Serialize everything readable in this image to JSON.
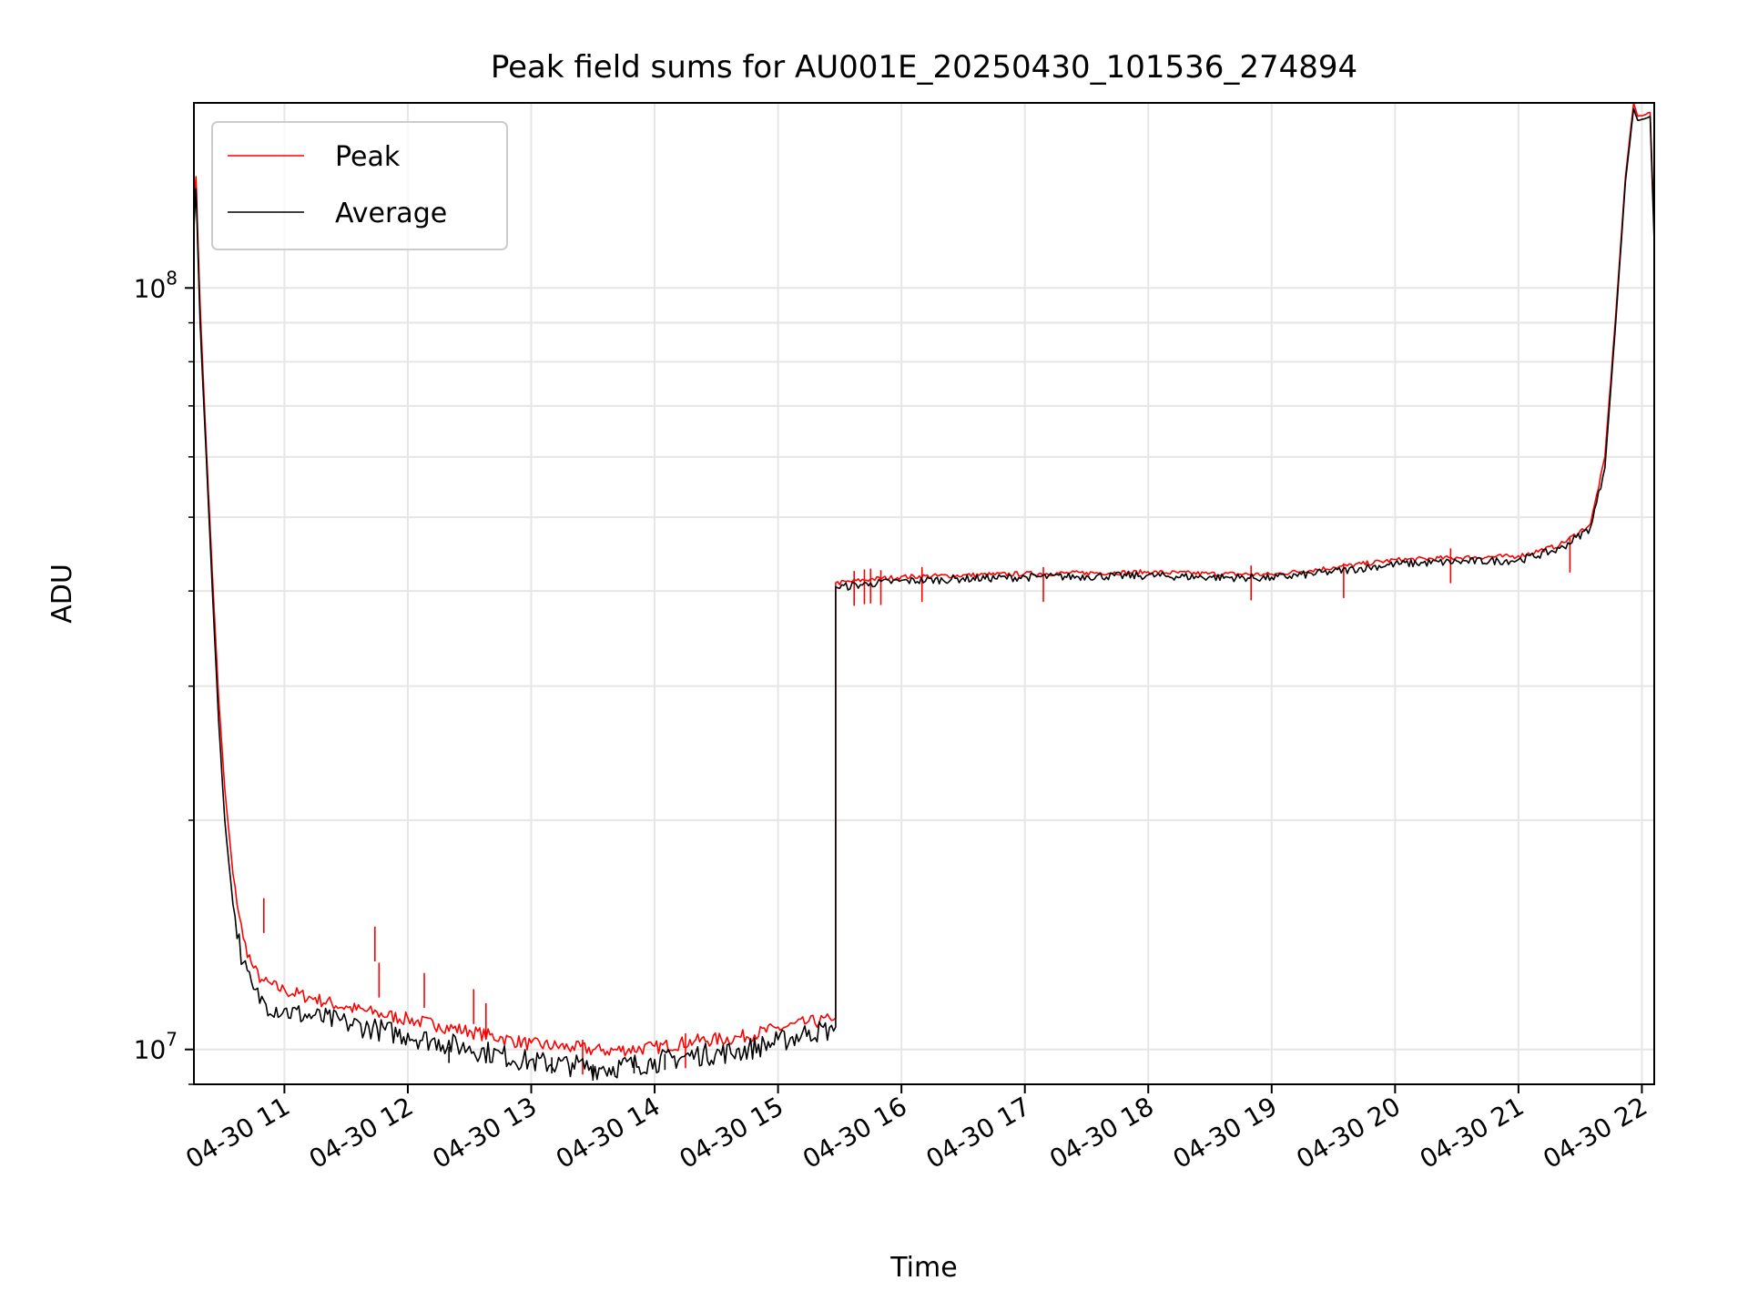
{
  "chart_data": {
    "type": "line",
    "title": "Peak field sums for AU001E_20250430_101536_274894",
    "xlabel": "Time",
    "ylabel": "ADU",
    "x_range": [
      "2025-04-30 10:16",
      "2025-04-30 22:06"
    ],
    "ylim": [
      9000000,
      175000000
    ],
    "y_scale": "log",
    "grid": true,
    "grid_minor_y": true,
    "legend_position": "top-left",
    "x_ticks": [
      {
        "value": "2025-04-30 11:00",
        "label": "04-30 11"
      },
      {
        "value": "2025-04-30 12:00",
        "label": "04-30 12"
      },
      {
        "value": "2025-04-30 13:00",
        "label": "04-30 13"
      },
      {
        "value": "2025-04-30 14:00",
        "label": "04-30 14"
      },
      {
        "value": "2025-04-30 15:00",
        "label": "04-30 15"
      },
      {
        "value": "2025-04-30 16:00",
        "label": "04-30 16"
      },
      {
        "value": "2025-04-30 17:00",
        "label": "04-30 17"
      },
      {
        "value": "2025-04-30 18:00",
        "label": "04-30 18"
      },
      {
        "value": "2025-04-30 19:00",
        "label": "04-30 19"
      },
      {
        "value": "2025-04-30 20:00",
        "label": "04-30 20"
      },
      {
        "value": "2025-04-30 21:00",
        "label": "04-30 21"
      },
      {
        "value": "2025-04-30 22:00",
        "label": "04-30 22"
      }
    ],
    "y_ticks": [
      {
        "value": 10000000,
        "base": "10",
        "exp": "7"
      },
      {
        "value": 100000000,
        "base": "10",
        "exp": "8"
      }
    ],
    "series": [
      {
        "name": "Peak",
        "color": "#ff0000",
        "points": [
          [
            "2025-04-30 10:16",
            130000000
          ],
          [
            "2025-04-30 10:17",
            140000000
          ],
          [
            "2025-04-30 10:19",
            95000000
          ],
          [
            "2025-04-30 10:22",
            62000000
          ],
          [
            "2025-04-30 10:25",
            42000000
          ],
          [
            "2025-04-30 10:28",
            29000000
          ],
          [
            "2025-04-30 10:31",
            22000000
          ],
          [
            "2025-04-30 10:35",
            17000000
          ],
          [
            "2025-04-30 10:40",
            14000000
          ],
          [
            "2025-04-30 10:45",
            12800000
          ],
          [
            "2025-04-30 10:50",
            12300000
          ],
          [
            "2025-04-30 11:00",
            12000000
          ],
          [
            "2025-04-30 11:15",
            11700000
          ],
          [
            "2025-04-30 11:30",
            11400000
          ],
          [
            "2025-04-30 11:45",
            11200000
          ],
          [
            "2025-04-30 12:00",
            11000000
          ],
          [
            "2025-04-30 12:15",
            10800000
          ],
          [
            "2025-04-30 12:30",
            10600000
          ],
          [
            "2025-04-30 12:45",
            10400000
          ],
          [
            "2025-04-30 13:00",
            10200000
          ],
          [
            "2025-04-30 13:20",
            10100000
          ],
          [
            "2025-04-30 13:35",
            10000000
          ],
          [
            "2025-04-30 14:00",
            10100000
          ],
          [
            "2025-04-30 14:20",
            10300000
          ],
          [
            "2025-04-30 14:40",
            10400000
          ],
          [
            "2025-04-30 15:00",
            10700000
          ],
          [
            "2025-04-30 15:15",
            10900000
          ],
          [
            "2025-04-30 15:28",
            11000000
          ],
          [
            "2025-04-30 15:28",
            41000000
          ],
          [
            "2025-04-30 15:45",
            41500000
          ],
          [
            "2025-04-30 16:00",
            41800000
          ],
          [
            "2025-04-30 16:30",
            42000000
          ],
          [
            "2025-04-30 17:00",
            42200000
          ],
          [
            "2025-04-30 17:30",
            42300000
          ],
          [
            "2025-04-30 18:00",
            42400000
          ],
          [
            "2025-04-30 18:30",
            42200000
          ],
          [
            "2025-04-30 19:00",
            42100000
          ],
          [
            "2025-04-30 19:30",
            43000000
          ],
          [
            "2025-04-30 20:00",
            44000000
          ],
          [
            "2025-04-30 20:30",
            44300000
          ],
          [
            "2025-04-30 21:00",
            44500000
          ],
          [
            "2025-04-30 21:20",
            46000000
          ],
          [
            "2025-04-30 21:35",
            49000000
          ],
          [
            "2025-04-30 21:42",
            60000000
          ],
          [
            "2025-04-30 21:47",
            90000000
          ],
          [
            "2025-04-30 21:52",
            140000000
          ],
          [
            "2025-04-30 21:56",
            175000000
          ],
          [
            "2025-04-30 21:58",
            168000000
          ],
          [
            "2025-04-30 22:04",
            170000000
          ],
          [
            "2025-04-30 22:06",
            120000000
          ]
        ],
        "spikes": [
          [
            "2025-04-30 10:50",
            15800000
          ],
          [
            "2025-04-30 11:44",
            14500000
          ],
          [
            "2025-04-30 11:46",
            13000000
          ],
          [
            "2025-04-30 12:08",
            12600000
          ],
          [
            "2025-04-30 12:32",
            12000000
          ],
          [
            "2025-04-30 12:38",
            11500000
          ],
          [
            "2025-04-30 13:25",
            10300000
          ],
          [
            "2025-04-30 14:15",
            10500000
          ],
          [
            "2025-04-30 15:37",
            42500000
          ],
          [
            "2025-04-30 15:42",
            42700000
          ],
          [
            "2025-04-30 15:45",
            42800000
          ],
          [
            "2025-04-30 15:50",
            42600000
          ],
          [
            "2025-04-30 16:10",
            43000000
          ],
          [
            "2025-04-30 17:09",
            43000000
          ],
          [
            "2025-04-30 18:50",
            43200000
          ],
          [
            "2025-04-30 19:35",
            43500000
          ],
          [
            "2025-04-30 20:27",
            45500000
          ],
          [
            "2025-04-30 21:25",
            47000000
          ]
        ]
      },
      {
        "name": "Average",
        "color": "#000000",
        "points": [
          [
            "2025-04-30 10:16",
            120000000
          ],
          [
            "2025-04-30 10:17",
            135000000
          ],
          [
            "2025-04-30 10:19",
            90000000
          ],
          [
            "2025-04-30 10:22",
            60000000
          ],
          [
            "2025-04-30 10:25",
            40000000
          ],
          [
            "2025-04-30 10:28",
            27000000
          ],
          [
            "2025-04-30 10:31",
            20000000
          ],
          [
            "2025-04-30 10:35",
            15500000
          ],
          [
            "2025-04-30 10:40",
            13000000
          ],
          [
            "2025-04-30 10:45",
            12000000
          ],
          [
            "2025-04-30 10:50",
            11600000
          ],
          [
            "2025-04-30 11:00",
            11300000
          ],
          [
            "2025-04-30 11:15",
            11100000
          ],
          [
            "2025-04-30 11:30",
            10900000
          ],
          [
            "2025-04-30 11:45",
            10700000
          ],
          [
            "2025-04-30 12:00",
            10500000
          ],
          [
            "2025-04-30 12:15",
            10300000
          ],
          [
            "2025-04-30 12:30",
            10100000
          ],
          [
            "2025-04-30 12:45",
            9900000
          ],
          [
            "2025-04-30 13:00",
            9700000
          ],
          [
            "2025-04-30 13:20",
            9600000
          ],
          [
            "2025-04-30 13:35",
            9500000
          ],
          [
            "2025-04-30 14:00",
            9700000
          ],
          [
            "2025-04-30 14:20",
            9900000
          ],
          [
            "2025-04-30 14:40",
            10000000
          ],
          [
            "2025-04-30 15:00",
            10300000
          ],
          [
            "2025-04-30 15:15",
            10600000
          ],
          [
            "2025-04-30 15:28",
            10700000
          ],
          [
            "2025-04-30 15:28",
            40500000
          ],
          [
            "2025-04-30 15:45",
            41000000
          ],
          [
            "2025-04-30 16:00",
            41300000
          ],
          [
            "2025-04-30 16:30",
            41600000
          ],
          [
            "2025-04-30 17:00",
            41800000
          ],
          [
            "2025-04-30 17:30",
            41900000
          ],
          [
            "2025-04-30 18:00",
            42000000
          ],
          [
            "2025-04-30 18:30",
            41800000
          ],
          [
            "2025-04-30 19:00",
            41700000
          ],
          [
            "2025-04-30 19:30",
            42500000
          ],
          [
            "2025-04-30 20:00",
            43500000
          ],
          [
            "2025-04-30 20:30",
            43800000
          ],
          [
            "2025-04-30 21:00",
            44000000
          ],
          [
            "2025-04-30 21:20",
            45500000
          ],
          [
            "2025-04-30 21:35",
            48500000
          ],
          [
            "2025-04-30 21:42",
            58000000
          ],
          [
            "2025-04-30 21:47",
            88000000
          ],
          [
            "2025-04-30 21:52",
            138000000
          ],
          [
            "2025-04-30 21:56",
            172000000
          ],
          [
            "2025-04-30 21:58",
            166000000
          ],
          [
            "2025-04-30 22:04",
            168000000
          ],
          [
            "2025-04-30 22:06",
            115000000
          ]
        ],
        "dips": [
          [
            "2025-04-30 13:10",
            9300000
          ],
          [
            "2025-04-30 13:30",
            9100000
          ],
          [
            "2025-04-30 13:50",
            9300000
          ],
          [
            "2025-04-30 14:05",
            9400000
          ],
          [
            "2025-04-30 12:20",
            9600000
          ]
        ]
      }
    ]
  }
}
